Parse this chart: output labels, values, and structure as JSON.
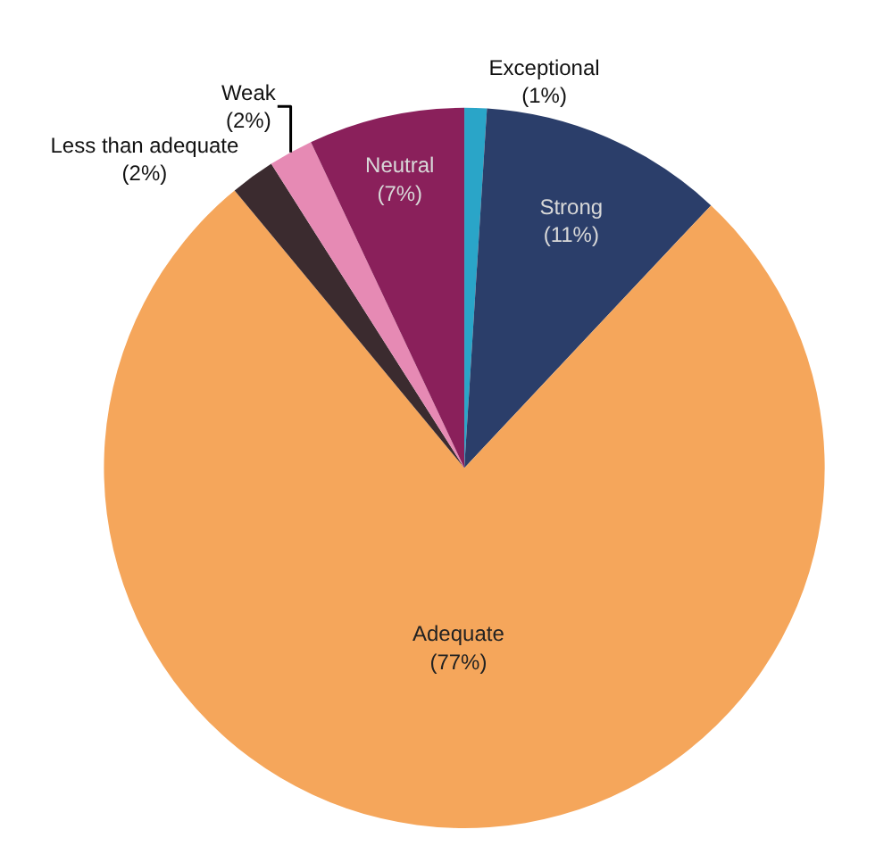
{
  "chart_data": {
    "type": "pie",
    "categories": [
      "Exceptional",
      "Strong",
      "Adequate",
      "Less than adequate",
      "Weak",
      "Neutral"
    ],
    "values": [
      1,
      11,
      77,
      2,
      2,
      7
    ],
    "value_labels": [
      "(1%)",
      "(11%)",
      "(77%)",
      "(2%)",
      "(2%)",
      "(7%)"
    ],
    "colors": [
      "#2aa5c8",
      "#2b3e6a",
      "#f5a65b",
      "#3b2b2f",
      "#e68ab4",
      "#8a205b"
    ],
    "legend": false
  }
}
